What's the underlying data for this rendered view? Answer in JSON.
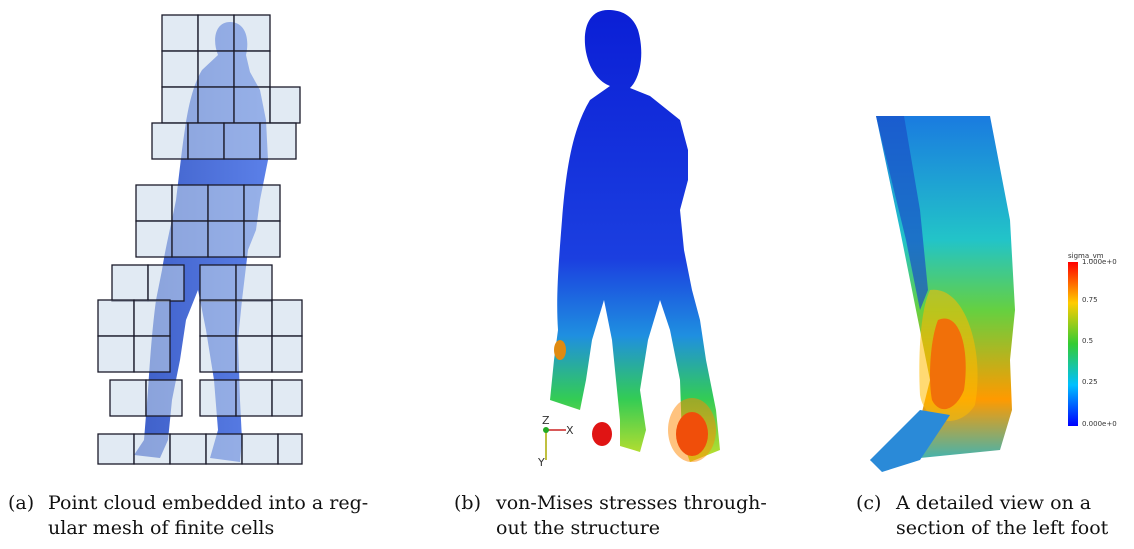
{
  "figures": [
    {
      "label": "(a)",
      "caption_lines": [
        "Point cloud embedded into a reg-",
        "ular mesh of finite cells"
      ]
    },
    {
      "label": "(b)",
      "caption_lines": [
        "von-Mises stresses through-",
        "out the structure"
      ]
    },
    {
      "label": "(c)",
      "caption_lines": [
        "A detailed view on a",
        "section of the left foot"
      ]
    }
  ],
  "colorbar": {
    "title": "sigma_vm",
    "ticks": [
      "1.000e+0",
      "0.75",
      "0.5",
      "0.25",
      "0.000e+0"
    ],
    "colors": [
      "#ff0000",
      "#ffcc00",
      "#33cc33",
      "#00c0ff",
      "#0000ff"
    ]
  },
  "axes_triad": {
    "labels": [
      "Z",
      "X",
      "Y"
    ]
  },
  "colors": {
    "mesh_fill": "#c8d8ea",
    "mesh_edge": "#1a1a2a",
    "body_blue": "#4a6fd9"
  }
}
